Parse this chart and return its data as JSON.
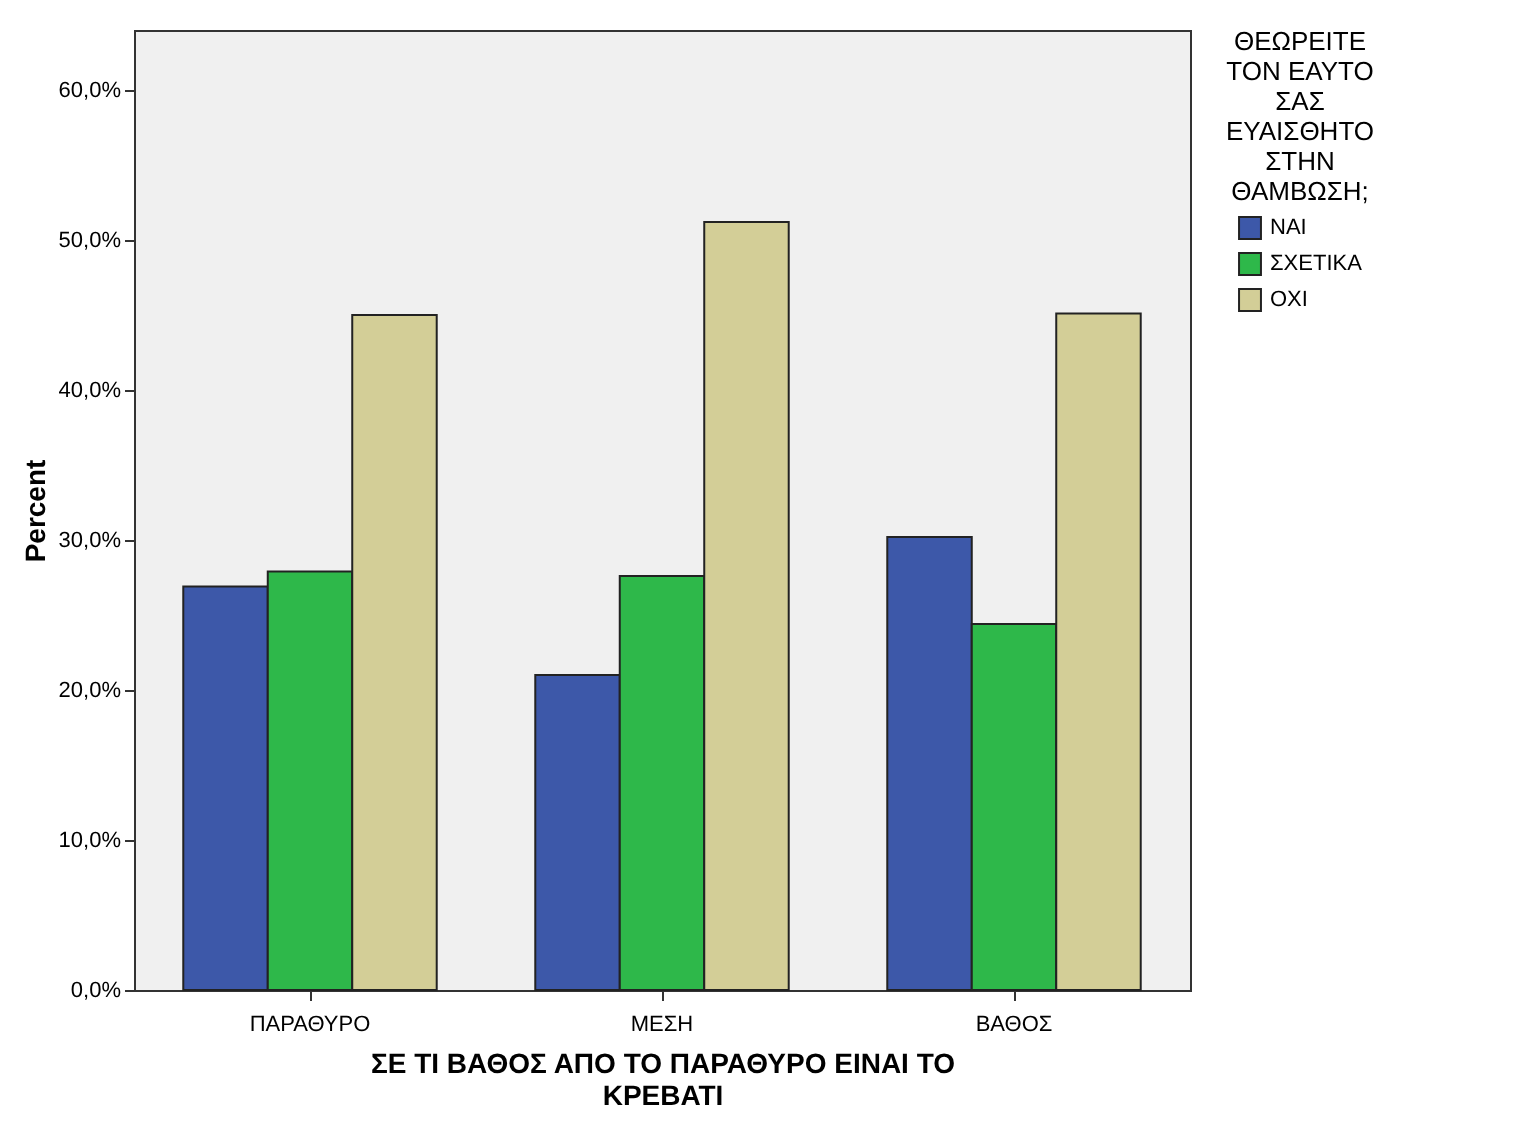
{
  "chart_data": {
    "type": "bar",
    "xlabel": "ΣΕ ΤΙ ΒΑΘΟΣ ΑΠΟ ΤΟ ΠΑΡΑΘΥΡΟ ΕΙΝΑΙ ΤΟ ΚΡΕΒΑΤΙ",
    "ylabel": "Percent",
    "legend_title": "ΘΕΩΡΕΙΤΕ ΤΟΝ ΕΑΥΤΟ ΣΑΣ ΕΥΑΙΣΘΗΤΟ ΣΤΗΝ ΘΑΜΒΩΣΗ;",
    "legend": "top right",
    "categories": [
      "ΠΑΡΑΘΥΡΟ",
      "ΜΕΣΗ",
      "ΒΑΘΟΣ"
    ],
    "series": [
      {
        "name": "ΝΑΙ",
        "color": "#3d58a9",
        "values": [
          26.9,
          21.0,
          30.2
        ]
      },
      {
        "name": "ΣΧΕΤΙΚΑ",
        "color": "#2eb84a",
        "values": [
          27.9,
          27.6,
          24.4
        ]
      },
      {
        "name": "ΟΧΙ",
        "color": "#d3ce97",
        "values": [
          45.0,
          51.2,
          45.1
        ]
      }
    ],
    "ylim": [
      0,
      64
    ],
    "yticks": [
      {
        "value": 0,
        "label": "0,0%"
      },
      {
        "value": 10,
        "label": "10,0%"
      },
      {
        "value": 20,
        "label": "20,0%"
      },
      {
        "value": 30,
        "label": "30,0%"
      },
      {
        "value": 40,
        "label": "40,0%"
      },
      {
        "value": 50,
        "label": "50,0%"
      },
      {
        "value": 60,
        "label": "60,0%"
      }
    ],
    "grid": false
  }
}
